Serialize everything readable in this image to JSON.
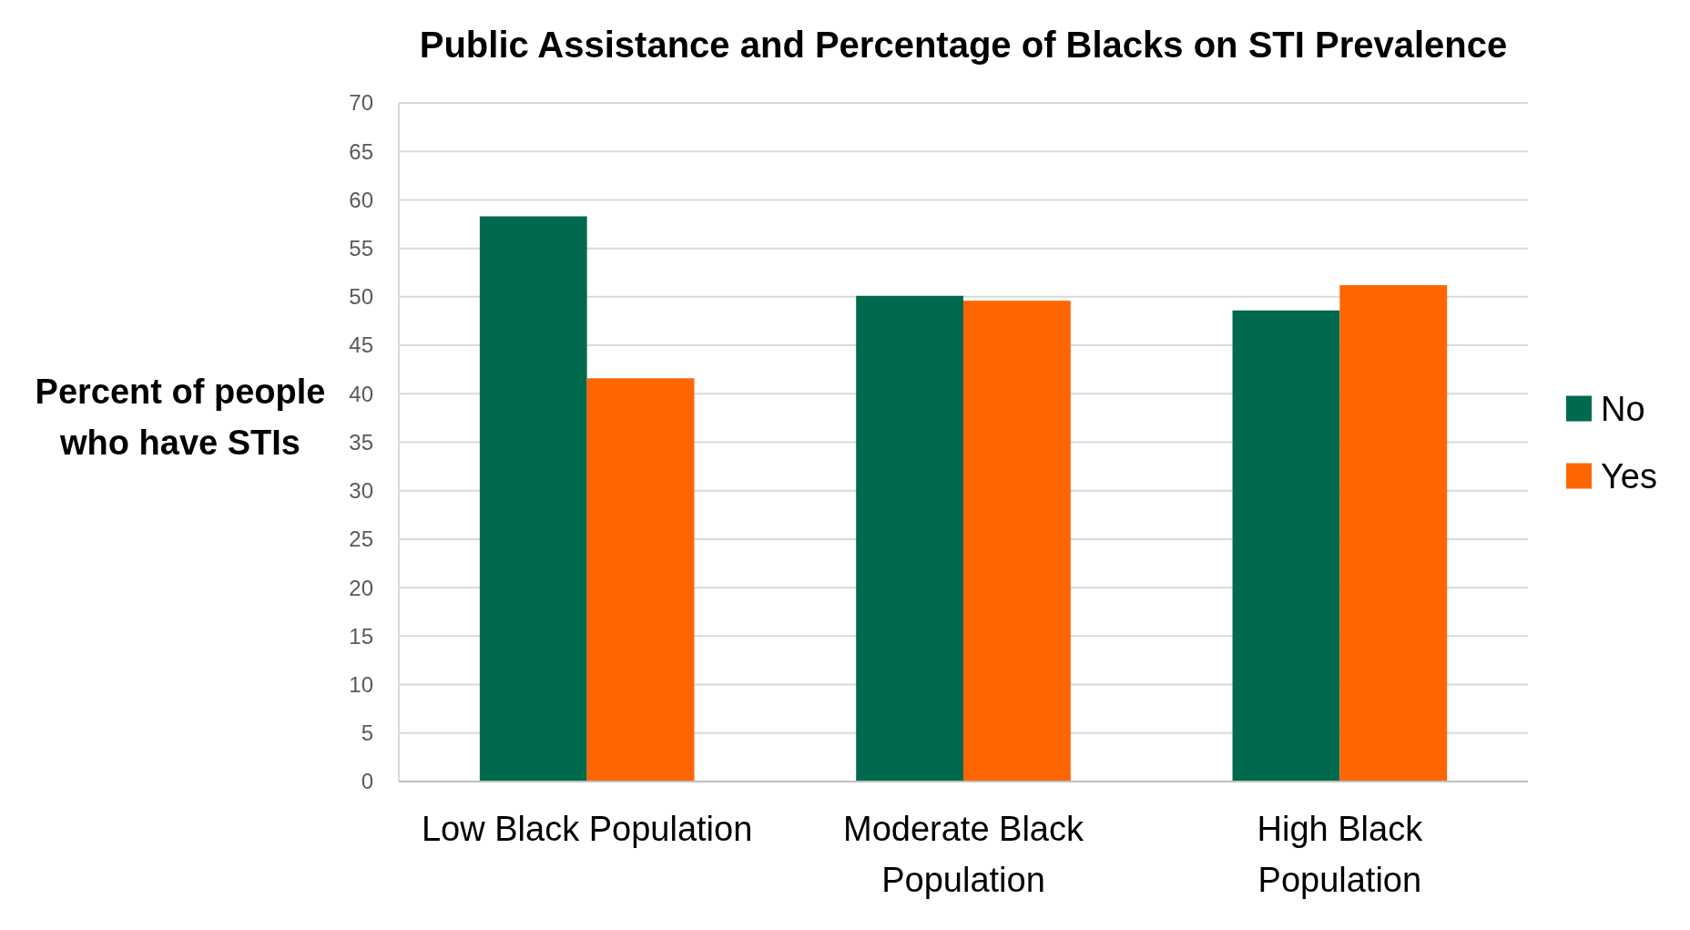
{
  "chart_data": {
    "type": "bar",
    "title": "Public Assistance and Percentage of Blacks on STI Prevalence",
    "ylabel": "Percent of people who have STIs",
    "categories": [
      "Low Black Population",
      "Moderate Black Population",
      "High Black Population"
    ],
    "series": [
      {
        "name": "No",
        "color": "#006a4e",
        "values": [
          58.3,
          50.1,
          48.6
        ]
      },
      {
        "name": "Yes",
        "color": "#ff6600",
        "values": [
          41.6,
          49.6,
          51.2
        ]
      }
    ],
    "ylim": [
      0,
      70
    ],
    "yticks": [
      0,
      5,
      10,
      15,
      20,
      25,
      30,
      35,
      40,
      45,
      50,
      55,
      60,
      65,
      70
    ],
    "grid": "y",
    "legend": "right"
  }
}
